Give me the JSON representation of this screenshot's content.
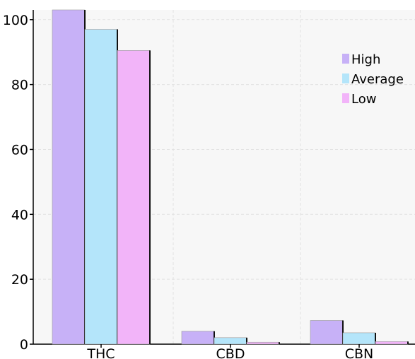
{
  "chart_data": {
    "type": "bar",
    "categories": [
      "THC",
      "CBD",
      "CBN"
    ],
    "series": [
      {
        "name": "High",
        "color": "#c7b1f7",
        "values": [
          103,
          4,
          7.3
        ]
      },
      {
        "name": "Average",
        "color": "#b4e5fa",
        "values": [
          97,
          2,
          3.5
        ]
      },
      {
        "name": "Low",
        "color": "#f2b4f9",
        "values": [
          90.5,
          0.6,
          0.8
        ]
      }
    ],
    "y_ticks": [
      "0",
      "20",
      "40",
      "60",
      "80",
      "100"
    ],
    "ylim": [
      0,
      103
    ],
    "grid": true,
    "legend_position": "top-right",
    "title": "",
    "xlabel": "",
    "ylabel": ""
  }
}
